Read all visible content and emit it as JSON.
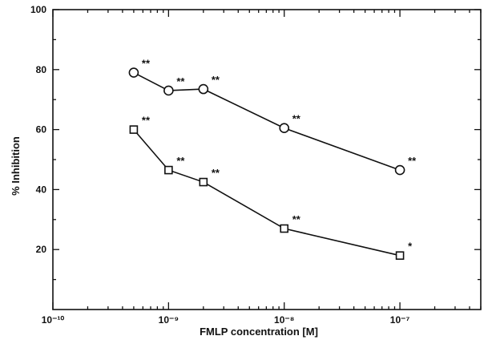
{
  "chart_data": {
    "type": "line",
    "xlabel": "FMLP concentration [M]",
    "ylabel": "% Inhibition",
    "x_scale": "log",
    "xlim": [
      1e-10,
      5e-07
    ],
    "ylim": [
      0,
      100
    ],
    "x_ticks": [
      {
        "value": 1e-10,
        "label": "10⁻¹⁰"
      },
      {
        "value": 1e-09,
        "label": "10⁻⁹"
      },
      {
        "value": 1e-08,
        "label": "10⁻⁸"
      },
      {
        "value": 1e-07,
        "label": "10⁻⁷"
      }
    ],
    "y_ticks": [
      20,
      40,
      60,
      80,
      100
    ],
    "grid": false,
    "series": [
      {
        "marker": "circle",
        "x": [
          5e-10,
          1e-09,
          2e-09,
          1e-08,
          1e-07
        ],
        "y": [
          79,
          73,
          73.5,
          60.5,
          46.5
        ],
        "significance": [
          "**",
          "**",
          "**",
          "**",
          "**"
        ]
      },
      {
        "marker": "square",
        "x": [
          5e-10,
          1e-09,
          2e-09,
          1e-08,
          1e-07
        ],
        "y": [
          60,
          46.5,
          42.5,
          27,
          18
        ],
        "significance": [
          "**",
          "**",
          "**",
          "**",
          "*"
        ]
      }
    ]
  }
}
